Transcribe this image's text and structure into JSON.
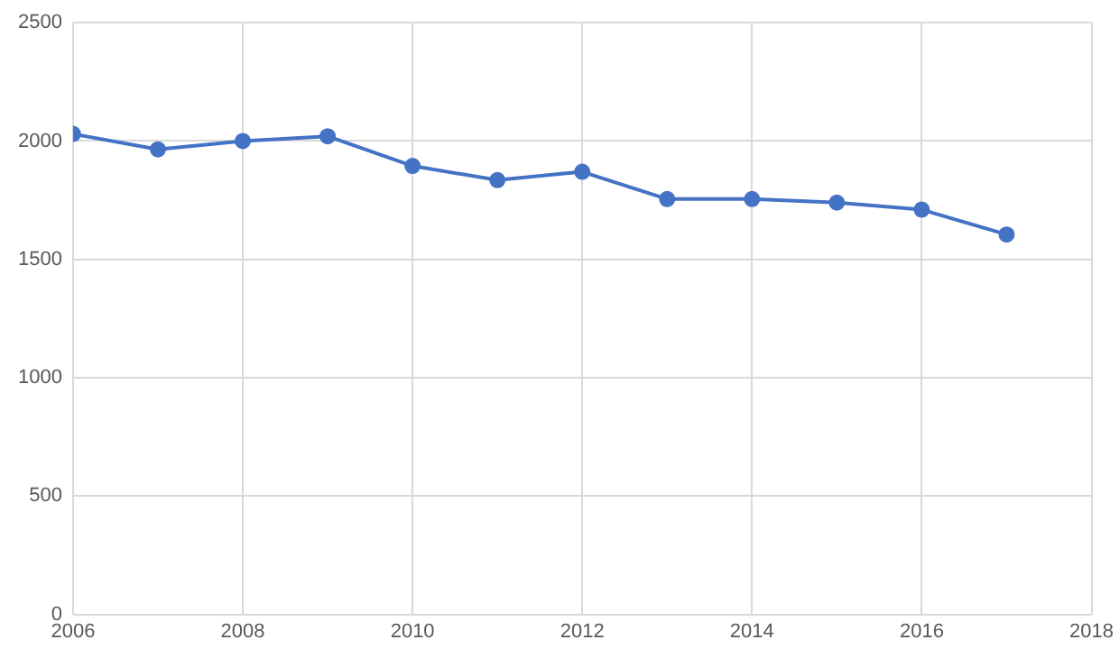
{
  "chart_data": {
    "type": "line",
    "x": [
      2006,
      2007,
      2008,
      2009,
      2010,
      2011,
      2012,
      2013,
      2014,
      2015,
      2016,
      2017
    ],
    "series": [
      {
        "color": "#4472c4",
        "values": [
          2030,
          1965,
          2000,
          2020,
          1895,
          1835,
          1870,
          1755,
          1755,
          1740,
          1710,
          1605
        ]
      }
    ],
    "xlim": [
      2006,
      2018
    ],
    "xticks": [
      2006,
      2008,
      2010,
      2012,
      2014,
      2016,
      2018
    ],
    "ylim": [
      0,
      2500
    ],
    "yticks": [
      0,
      500,
      1000,
      1500,
      2000,
      2500
    ],
    "grid": true,
    "legend": false,
    "marker": "circle",
    "line_style": "solid"
  }
}
